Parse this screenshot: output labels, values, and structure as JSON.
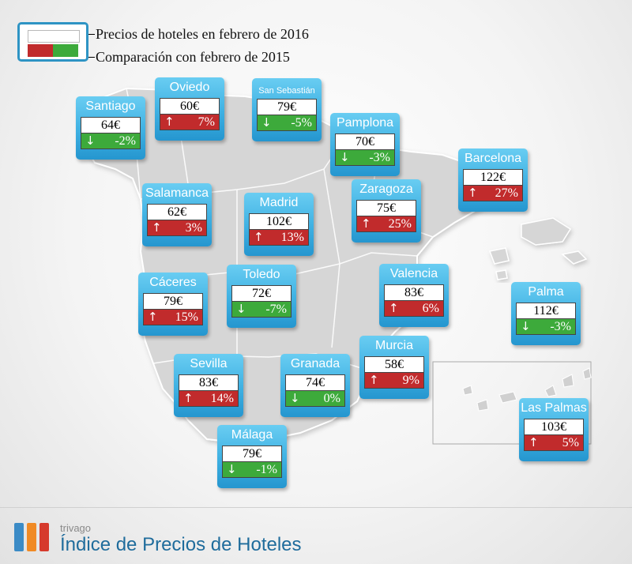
{
  "legend": {
    "price_label": "Precios de hoteles en febrero de 2016",
    "compare_label": "Comparación con febrero de 2015",
    "up_color": "#c12b2c",
    "down_color": "#3daa3b",
    "card_color": "#3eb0e2"
  },
  "cities": [
    {
      "name": "Santiago",
      "price": "64€",
      "direction": "down",
      "change": "-2%"
    },
    {
      "name": "Oviedo",
      "price": "60€",
      "direction": "up",
      "change": "7%"
    },
    {
      "name": "San Sebastián",
      "price": "79€",
      "direction": "down",
      "change": "-5%"
    },
    {
      "name": "Pamplona",
      "price": "70€",
      "direction": "down",
      "change": "-3%"
    },
    {
      "name": "Barcelona",
      "price": "122€",
      "direction": "up",
      "change": "27%"
    },
    {
      "name": "Salamanca",
      "price": "62€",
      "direction": "up",
      "change": "3%"
    },
    {
      "name": "Madrid",
      "price": "102€",
      "direction": "up",
      "change": "13%"
    },
    {
      "name": "Zaragoza",
      "price": "75€",
      "direction": "up",
      "change": "25%"
    },
    {
      "name": "Cáceres",
      "price": "79€",
      "direction": "up",
      "change": "15%"
    },
    {
      "name": "Toledo",
      "price": "72€",
      "direction": "down",
      "change": "-7%"
    },
    {
      "name": "Valencia",
      "price": "83€",
      "direction": "up",
      "change": "6%"
    },
    {
      "name": "Palma",
      "price": "112€",
      "direction": "down",
      "change": "-3%"
    },
    {
      "name": "Sevilla",
      "price": "83€",
      "direction": "up",
      "change": "14%"
    },
    {
      "name": "Granada",
      "price": "74€",
      "direction": "down",
      "change": "0%"
    },
    {
      "name": "Murcia",
      "price": "58€",
      "direction": "up",
      "change": "9%"
    },
    {
      "name": "Las Palmas",
      "price": "103€",
      "direction": "up",
      "change": "5%"
    },
    {
      "name": "Málaga",
      "price": "79€",
      "direction": "down",
      "change": "-1%"
    }
  ],
  "footer": {
    "brand": "trivago",
    "title": "Índice de Precios de Hoteles",
    "logo_colors": [
      "#3b8bc6",
      "#f08a24",
      "#d63a2c"
    ]
  }
}
